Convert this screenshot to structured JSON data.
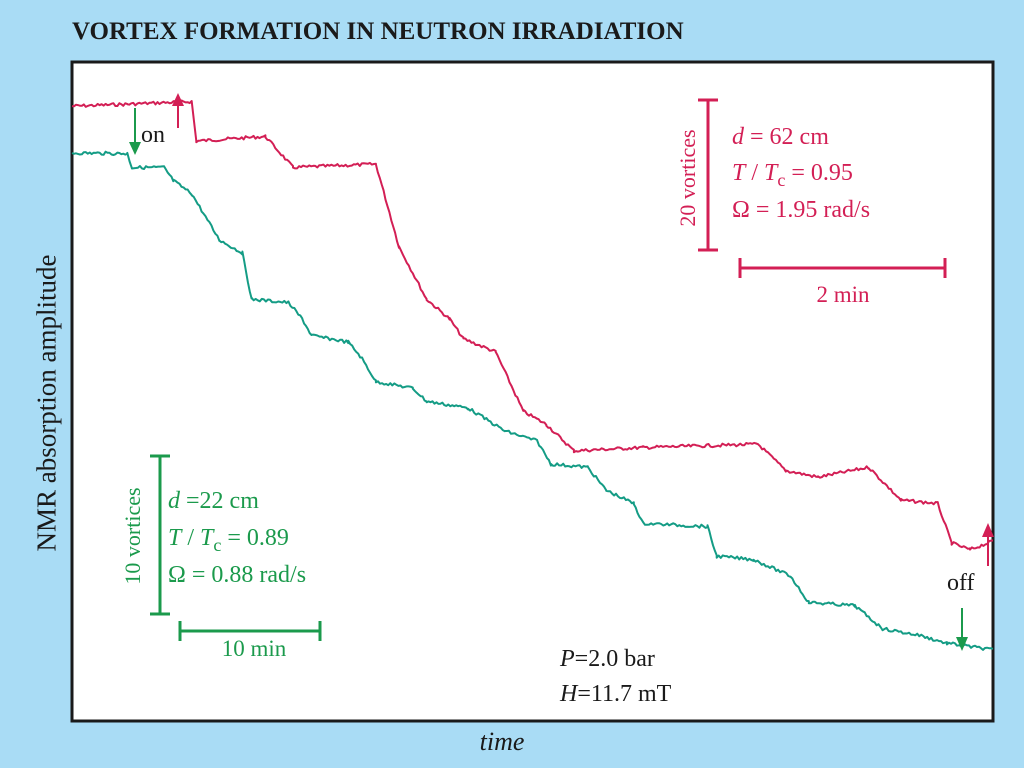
{
  "colors": {
    "background": "#a9dcf5",
    "plot_bg": "#ffffff",
    "red_trace": "#d31f55",
    "green_trace": "#149c85",
    "green_text": "#1b9a4c",
    "arrow_red": "#d31f55",
    "arrow_green": "#1b9a4c"
  },
  "chart_data": {
    "type": "line",
    "title": "VORTEX FORMATION IN NEUTRON IRRADIATION",
    "xlabel": "time",
    "ylabel": "NMR absorption amplitude",
    "grid": false,
    "xlim": [
      0,
      1
    ],
    "ylim": [
      0,
      1
    ],
    "series": [
      {
        "color": "#d31f55",
        "points": [
          [
            0.0,
            0.933
          ],
          [
            0.06,
            0.936
          ],
          [
            0.13,
            0.94
          ],
          [
            0.135,
            0.88
          ],
          [
            0.21,
            0.887
          ],
          [
            0.24,
            0.84
          ],
          [
            0.33,
            0.845
          ],
          [
            0.355,
            0.72
          ],
          [
            0.385,
            0.64
          ],
          [
            0.41,
            0.61
          ],
          [
            0.425,
            0.58
          ],
          [
            0.46,
            0.56
          ],
          [
            0.49,
            0.47
          ],
          [
            0.515,
            0.45
          ],
          [
            0.53,
            0.43
          ],
          [
            0.545,
            0.41
          ],
          [
            0.62,
            0.415
          ],
          [
            0.745,
            0.42
          ],
          [
            0.775,
            0.38
          ],
          [
            0.81,
            0.37
          ],
          [
            0.865,
            0.385
          ],
          [
            0.9,
            0.335
          ],
          [
            0.94,
            0.33
          ],
          [
            0.955,
            0.27
          ],
          [
            0.975,
            0.26
          ],
          [
            1.0,
            0.273
          ]
        ]
      },
      {
        "color": "#149c85",
        "points": [
          [
            0.0,
            0.862
          ],
          [
            0.06,
            0.861
          ],
          [
            0.065,
            0.84
          ],
          [
            0.1,
            0.84
          ],
          [
            0.11,
            0.82
          ],
          [
            0.13,
            0.8
          ],
          [
            0.16,
            0.73
          ],
          [
            0.185,
            0.71
          ],
          [
            0.195,
            0.64
          ],
          [
            0.235,
            0.635
          ],
          [
            0.25,
            0.61
          ],
          [
            0.26,
            0.585
          ],
          [
            0.3,
            0.575
          ],
          [
            0.315,
            0.55
          ],
          [
            0.33,
            0.515
          ],
          [
            0.37,
            0.505
          ],
          [
            0.385,
            0.485
          ],
          [
            0.43,
            0.475
          ],
          [
            0.47,
            0.44
          ],
          [
            0.505,
            0.425
          ],
          [
            0.52,
            0.39
          ],
          [
            0.56,
            0.385
          ],
          [
            0.58,
            0.35
          ],
          [
            0.61,
            0.33
          ],
          [
            0.62,
            0.3
          ],
          [
            0.69,
            0.295
          ],
          [
            0.7,
            0.25
          ],
          [
            0.74,
            0.245
          ],
          [
            0.78,
            0.22
          ],
          [
            0.8,
            0.18
          ],
          [
            0.85,
            0.175
          ],
          [
            0.88,
            0.14
          ],
          [
            0.92,
            0.13
          ],
          [
            0.95,
            0.118
          ],
          [
            1.0,
            0.108
          ]
        ]
      }
    ],
    "annotations": {
      "on": "on",
      "off": "off",
      "red_scale_vertical": "20 vortices",
      "red_scale_horizontal": "2 min",
      "red_params": {
        "line1": {
          "var": "d",
          "rest": " = 62 cm"
        },
        "line2": {
          "var": "T",
          "mid": " / ",
          "var2": "T",
          "sub": "c",
          "rest": " = 0.95"
        },
        "line3": {
          "var": "Ω",
          "rest": " = 1.95  rad/s"
        }
      },
      "green_scale_vertical": "10 vortices",
      "green_scale_horizontal": "10 min",
      "green_params": {
        "line1": {
          "var": "d",
          "rest": " =22 cm"
        },
        "line2": {
          "var": "T",
          "mid": " / ",
          "var2": "T",
          "sub": "c",
          "rest": " = 0.89"
        },
        "line3": {
          "var": "Ω",
          "rest": " = 0.88  rad/s"
        }
      },
      "conditions": {
        "p_var": "P",
        "p_rest": "=2.0 bar",
        "h_var": "H",
        "h_rest": "=11.7 mT"
      }
    }
  }
}
